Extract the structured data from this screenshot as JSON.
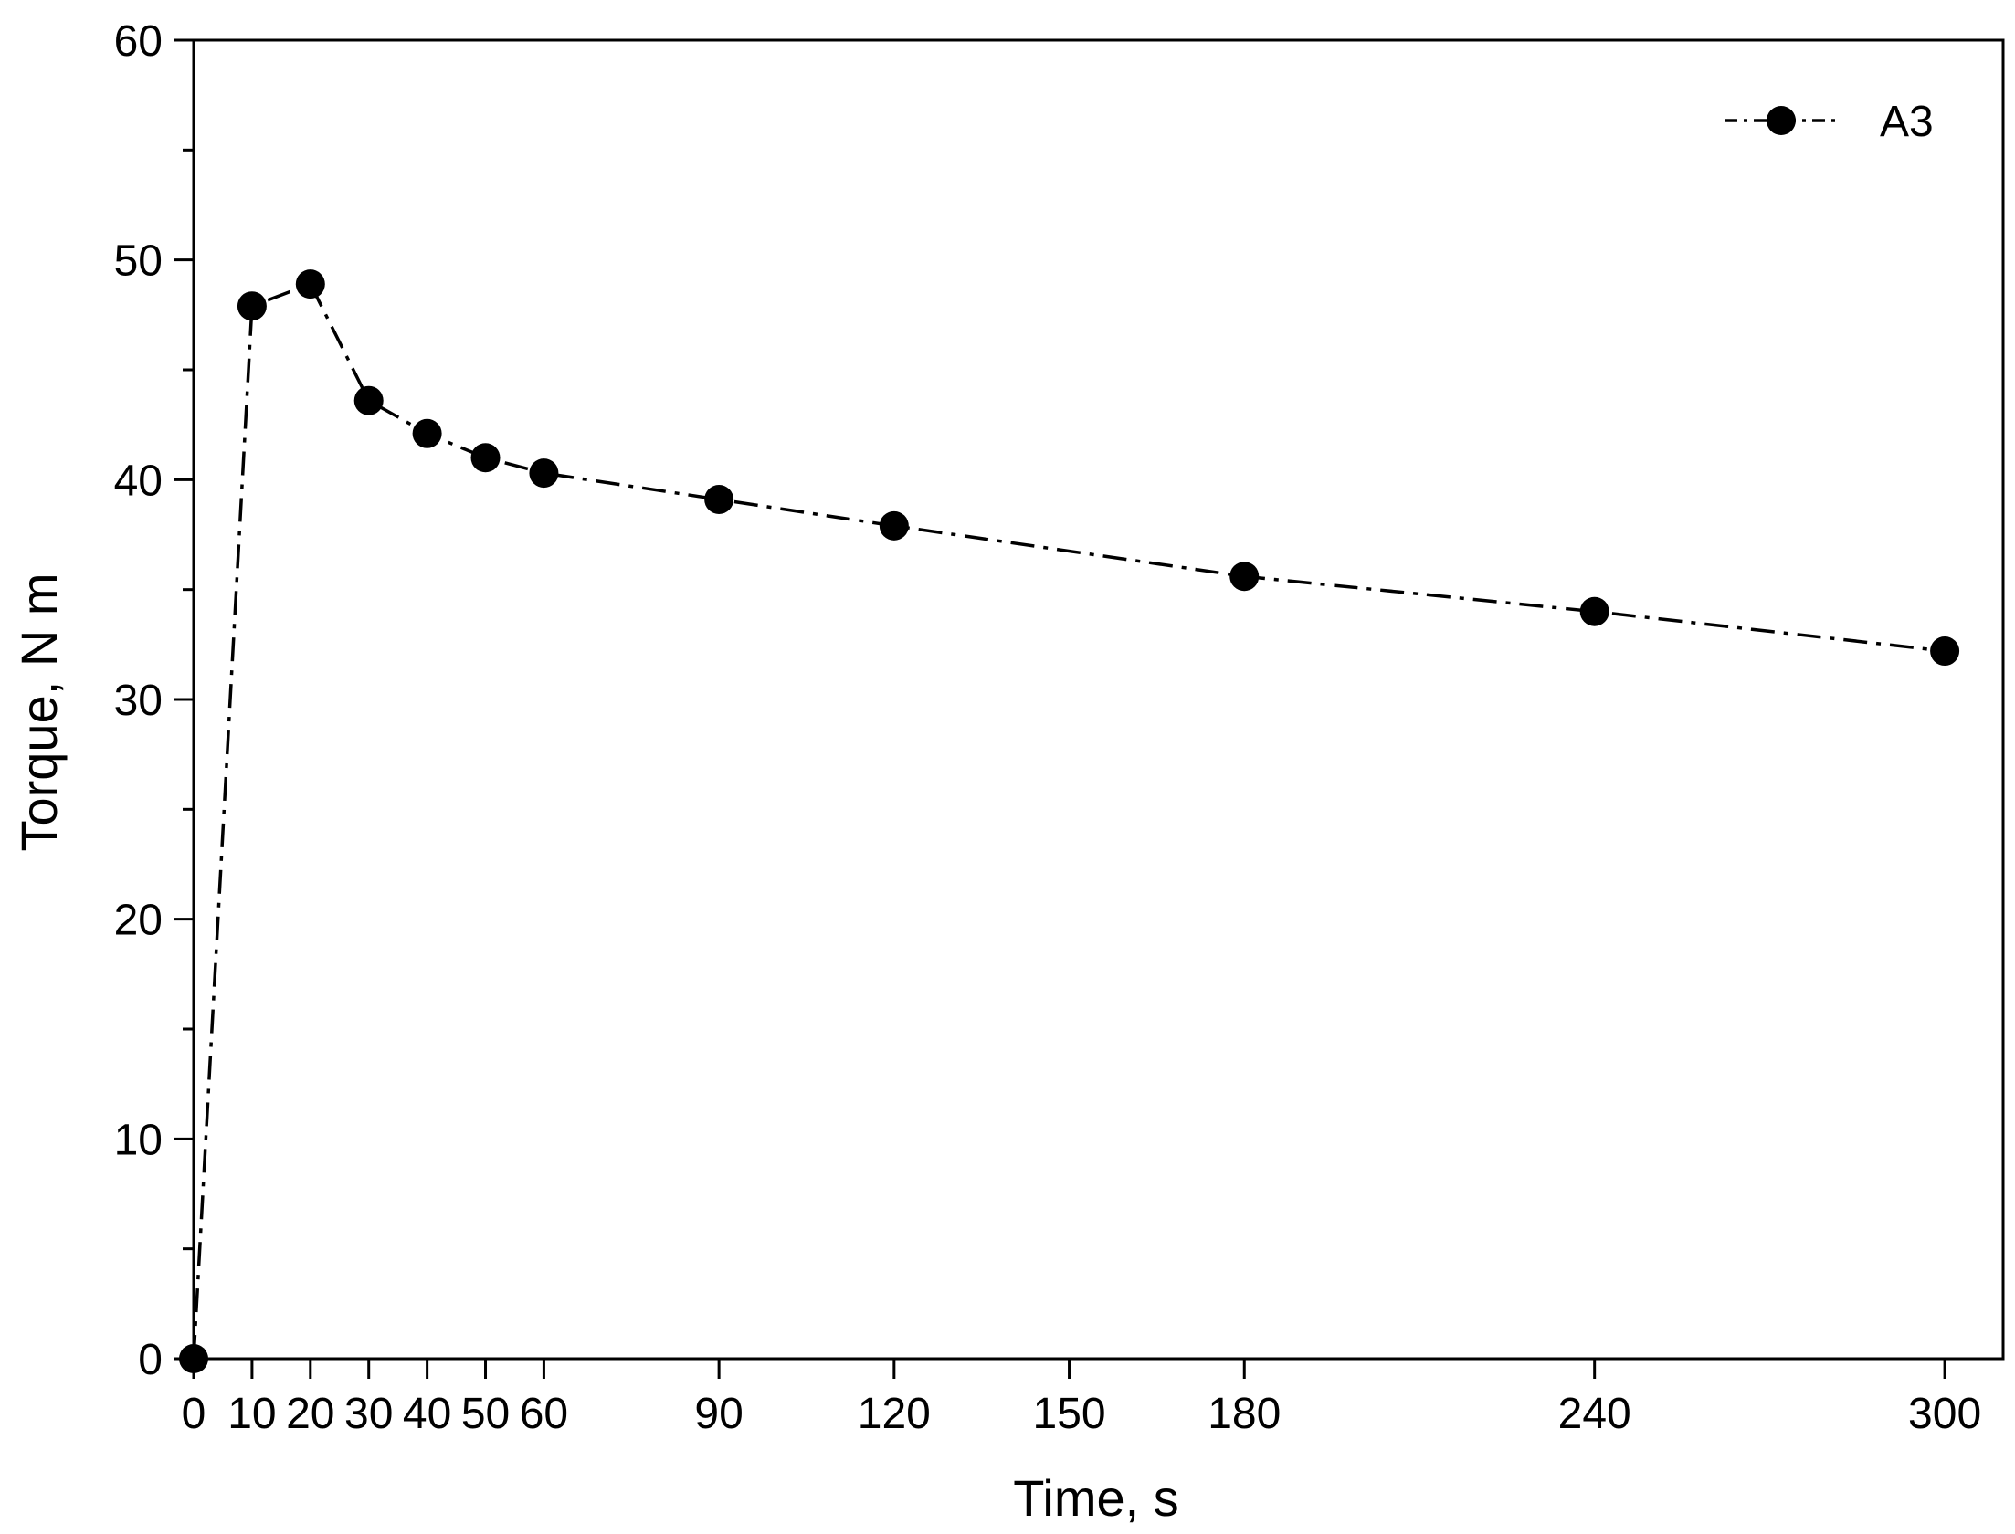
{
  "chart_data": {
    "type": "line",
    "title": "",
    "xlabel": "Time, s",
    "ylabel": "Torque,  N m",
    "xlim": [
      0,
      310
    ],
    "ylim": [
      0,
      60
    ],
    "x_ticks": [
      0,
      10,
      20,
      30,
      40,
      50,
      60,
      90,
      120,
      150,
      180,
      240,
      300
    ],
    "y_ticks": [
      0,
      10,
      20,
      30,
      40,
      50,
      60
    ],
    "y_minor_step": 5,
    "grid": false,
    "legend_position": "top-right",
    "series": [
      {
        "name": "A3",
        "color": "#000000",
        "marker": "filled-circle",
        "line_style": "dash-dot",
        "x": [
          0,
          10,
          20,
          30,
          40,
          50,
          60,
          90,
          120,
          180,
          240,
          300
        ],
        "y": [
          0,
          47.9,
          48.9,
          43.6,
          42.1,
          41.0,
          40.3,
          39.1,
          37.9,
          35.6,
          34.0,
          32.2
        ]
      }
    ]
  }
}
